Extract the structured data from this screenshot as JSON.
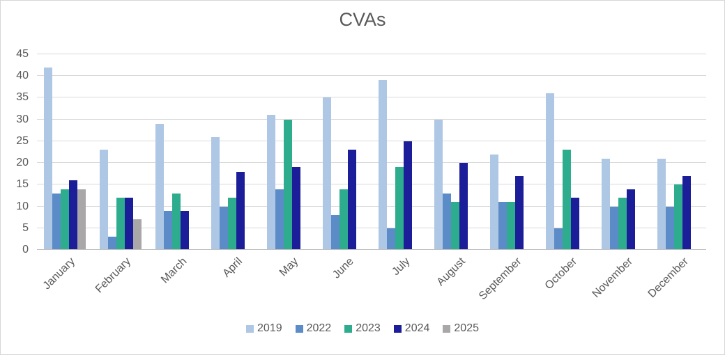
{
  "chart_data": {
    "type": "bar",
    "title": "CVAs",
    "categories": [
      "January",
      "February",
      "March",
      "April",
      "May",
      "June",
      "July",
      "August",
      "September",
      "October",
      "November",
      "December"
    ],
    "series": [
      {
        "name": "2019",
        "color": "#aec7e4",
        "values": [
          42,
          23,
          29,
          26,
          31,
          35,
          39,
          30,
          22,
          36,
          21,
          21
        ]
      },
      {
        "name": "2022",
        "color": "#5b8cc8",
        "values": [
          13,
          3,
          9,
          10,
          14,
          8,
          5,
          13,
          11,
          5,
          10,
          10
        ]
      },
      {
        "name": "2023",
        "color": "#2eac8e",
        "values": [
          14,
          12,
          13,
          12,
          30,
          14,
          19,
          11,
          11,
          23,
          12,
          15
        ]
      },
      {
        "name": "2024",
        "color": "#1b1d99",
        "values": [
          16,
          12,
          9,
          18,
          19,
          23,
          25,
          20,
          17,
          12,
          14,
          17
        ]
      },
      {
        "name": "2025",
        "color": "#aaa7a8",
        "values": [
          14,
          7,
          null,
          null,
          null,
          null,
          null,
          null,
          null,
          null,
          null,
          null
        ]
      }
    ],
    "ylim": [
      0,
      45
    ],
    "yticks": [
      0,
      5,
      10,
      15,
      20,
      25,
      30,
      35,
      40,
      45
    ],
    "grid": "horizontal",
    "legend_position": "bottom",
    "axis_text_color": "#595959",
    "gridline_color": "#d9d9d9",
    "axisline_color": "#bfbfbf"
  }
}
